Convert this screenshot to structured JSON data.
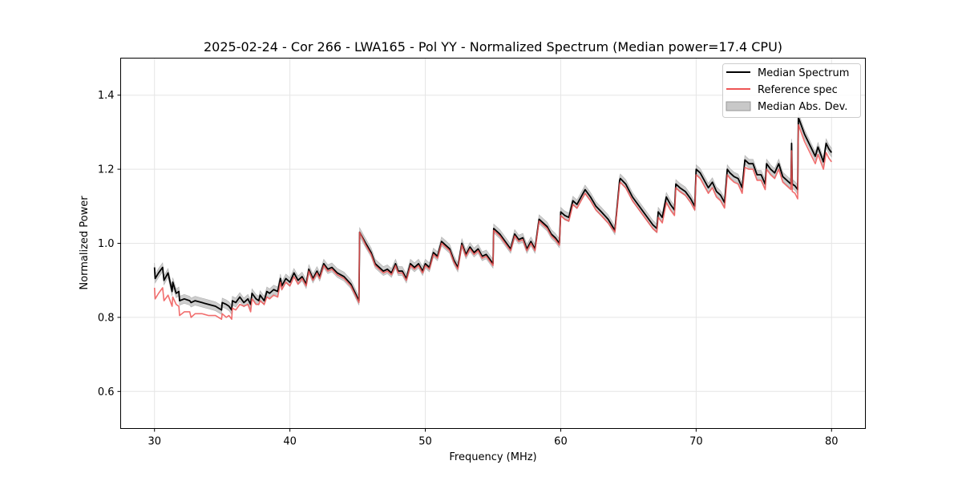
{
  "chart_data": {
    "type": "line",
    "title": "2025-02-24 - Cor 266 - LWA165 - Pol YY - Normalized Spectrum (Median power=17.4 CPU)",
    "xlabel": "Frequency (MHz)",
    "ylabel": "Normalized Power",
    "xlim": [
      27.5,
      82.5
    ],
    "ylim": [
      0.5,
      1.5
    ],
    "xticks": [
      30,
      40,
      50,
      60,
      70,
      80
    ],
    "yticks": [
      0.6,
      0.8,
      1.0,
      1.2,
      1.4
    ],
    "xtick_labels": [
      "30",
      "40",
      "50",
      "60",
      "70",
      "80"
    ],
    "ytick_labels": [
      "0.6",
      "0.8",
      "1.0",
      "1.2",
      "1.4"
    ],
    "grid": true,
    "legend_position": "top-right",
    "legend": {
      "median": "Median Spectrum",
      "reference": "Reference spec",
      "mad": "Median Abs. Dev."
    },
    "colors": {
      "median": "#000000",
      "reference": "#ee5555",
      "mad_fill": "#c8c8c8",
      "overlap": "#8b0000"
    },
    "mad_halfwidth": 0.012,
    "series": [
      {
        "name": "Median Spectrum",
        "x": [
          30.0,
          30.05,
          30.3,
          30.6,
          30.7,
          31.0,
          31.3,
          31.35,
          31.6,
          31.8,
          31.85,
          32.2,
          32.6,
          32.7,
          33.0,
          33.5,
          34.0,
          34.5,
          34.95,
          35.0,
          35.3,
          35.5,
          35.7,
          35.75,
          36.0,
          36.3,
          36.6,
          36.9,
          37.1,
          37.2,
          37.5,
          37.7,
          37.8,
          38.1,
          38.3,
          38.5,
          38.8,
          39.1,
          39.3,
          39.4,
          39.7,
          40.0,
          40.3,
          40.6,
          40.9,
          41.2,
          41.4,
          41.7,
          42.0,
          42.2,
          42.5,
          42.8,
          43.1,
          43.5,
          44.0,
          44.5,
          45.1,
          45.15,
          45.6,
          46.0,
          46.3,
          46.6,
          46.9,
          47.2,
          47.5,
          47.8,
          48.0,
          48.3,
          48.6,
          48.9,
          49.2,
          49.5,
          49.8,
          50.0,
          50.3,
          50.6,
          50.9,
          51.2,
          51.5,
          51.8,
          52.1,
          52.4,
          52.7,
          53.0,
          53.3,
          53.6,
          53.9,
          54.2,
          54.5,
          54.8,
          55.0,
          55.05,
          55.5,
          56.0,
          56.3,
          56.6,
          56.9,
          57.2,
          57.5,
          57.8,
          58.1,
          58.4,
          58.7,
          59.0,
          59.3,
          59.6,
          59.9,
          60.0,
          60.3,
          60.6,
          60.9,
          61.2,
          61.5,
          61.8,
          62.2,
          62.6,
          63.0,
          63.5,
          64.0,
          64.35,
          64.4,
          64.8,
          65.3,
          65.8,
          66.3,
          66.8,
          67.1,
          67.2,
          67.5,
          67.8,
          68.1,
          68.4,
          68.5,
          68.8,
          69.2,
          69.6,
          69.9,
          70.0,
          70.3,
          70.6,
          70.9,
          71.2,
          71.5,
          71.8,
          72.1,
          72.3,
          72.5,
          72.8,
          73.1,
          73.4,
          73.6,
          73.9,
          74.2,
          74.5,
          74.8,
          75.1,
          75.2,
          75.5,
          75.8,
          76.1,
          76.4,
          76.7,
          77.0,
          77.05,
          77.1,
          77.3,
          77.5,
          77.55,
          78.0,
          78.4,
          78.8,
          79.0,
          79.2,
          79.4,
          79.6,
          79.8,
          80.0
        ],
        "values": [
          0.935,
          0.905,
          0.92,
          0.935,
          0.9,
          0.92,
          0.87,
          0.895,
          0.865,
          0.87,
          0.845,
          0.85,
          0.845,
          0.84,
          0.845,
          0.84,
          0.835,
          0.83,
          0.82,
          0.84,
          0.835,
          0.83,
          0.82,
          0.845,
          0.84,
          0.855,
          0.84,
          0.85,
          0.835,
          0.865,
          0.85,
          0.845,
          0.86,
          0.845,
          0.87,
          0.865,
          0.875,
          0.87,
          0.905,
          0.885,
          0.905,
          0.895,
          0.92,
          0.9,
          0.91,
          0.89,
          0.93,
          0.905,
          0.925,
          0.91,
          0.945,
          0.93,
          0.935,
          0.92,
          0.91,
          0.89,
          0.845,
          1.03,
          1.0,
          0.975,
          0.945,
          0.935,
          0.925,
          0.93,
          0.92,
          0.945,
          0.925,
          0.925,
          0.905,
          0.945,
          0.935,
          0.945,
          0.925,
          0.945,
          0.935,
          0.975,
          0.965,
          1.005,
          0.995,
          0.985,
          0.955,
          0.935,
          1.0,
          0.97,
          0.99,
          0.975,
          0.985,
          0.965,
          0.97,
          0.955,
          0.945,
          1.04,
          1.025,
          1.0,
          0.985,
          1.025,
          1.01,
          1.015,
          0.985,
          1.005,
          0.985,
          1.065,
          1.055,
          1.045,
          1.025,
          1.015,
          1.0,
          1.085,
          1.075,
          1.07,
          1.115,
          1.105,
          1.125,
          1.145,
          1.125,
          1.1,
          1.085,
          1.065,
          1.035,
          1.17,
          1.175,
          1.16,
          1.125,
          1.1,
          1.075,
          1.05,
          1.04,
          1.085,
          1.07,
          1.125,
          1.105,
          1.09,
          1.16,
          1.15,
          1.14,
          1.12,
          1.1,
          1.2,
          1.19,
          1.17,
          1.15,
          1.165,
          1.14,
          1.13,
          1.11,
          1.2,
          1.19,
          1.18,
          1.175,
          1.15,
          1.225,
          1.215,
          1.215,
          1.185,
          1.185,
          1.16,
          1.215,
          1.2,
          1.19,
          1.215,
          1.18,
          1.17,
          1.16,
          1.27,
          1.16,
          1.155,
          1.145,
          1.34,
          1.295,
          1.265,
          1.235,
          1.26,
          1.24,
          1.22,
          1.27,
          1.255,
          1.245
        ]
      },
      {
        "name": "Reference spec",
        "x": [
          30.0,
          30.05,
          30.3,
          30.6,
          30.7,
          31.0,
          31.3,
          31.35,
          31.6,
          31.8,
          31.85,
          32.2,
          32.6,
          32.7,
          33.0,
          33.5,
          34.0,
          34.5,
          34.95,
          35.0,
          35.3,
          35.5,
          35.7,
          35.75,
          36.0,
          36.3,
          36.6,
          36.9,
          37.1,
          37.2,
          37.5,
          37.7,
          37.8,
          38.1,
          38.3,
          38.5,
          38.8,
          39.1,
          39.3,
          39.4,
          39.7,
          40.0,
          40.3,
          40.6,
          40.9,
          41.2,
          41.4,
          41.7,
          42.0,
          42.2,
          42.5,
          42.8,
          43.1,
          43.5,
          44.0,
          44.5,
          45.1,
          45.15,
          45.6,
          46.0,
          46.3,
          46.6,
          46.9,
          47.2,
          47.5,
          47.8,
          48.0,
          48.3,
          48.6,
          48.9,
          49.2,
          49.5,
          49.8,
          50.0,
          50.3,
          50.6,
          50.9,
          51.2,
          51.5,
          51.8,
          52.1,
          52.4,
          52.7,
          53.0,
          53.3,
          53.6,
          53.9,
          54.2,
          54.5,
          54.8,
          55.0,
          55.05,
          55.5,
          56.0,
          56.3,
          56.6,
          56.9,
          57.2,
          57.5,
          57.8,
          58.1,
          58.4,
          58.7,
          59.0,
          59.3,
          59.6,
          59.9,
          60.0,
          60.3,
          60.6,
          60.9,
          61.2,
          61.5,
          61.8,
          62.2,
          62.6,
          63.0,
          63.5,
          64.0,
          64.35,
          64.4,
          64.8,
          65.3,
          65.8,
          66.3,
          66.8,
          67.1,
          67.2,
          67.5,
          67.8,
          68.1,
          68.4,
          68.5,
          68.8,
          69.2,
          69.6,
          69.9,
          70.0,
          70.3,
          70.6,
          70.9,
          71.2,
          71.5,
          71.8,
          72.1,
          72.3,
          72.5,
          72.8,
          73.1,
          73.4,
          73.6,
          73.9,
          74.2,
          74.5,
          74.8,
          75.1,
          75.2,
          75.5,
          75.8,
          76.1,
          76.4,
          76.7,
          77.0,
          77.05,
          77.1,
          77.3,
          77.5,
          77.55,
          78.0,
          78.4,
          78.8,
          79.0,
          79.2,
          79.4,
          79.6,
          79.8,
          80.0
        ],
        "values": [
          0.88,
          0.85,
          0.865,
          0.88,
          0.845,
          0.86,
          0.83,
          0.855,
          0.835,
          0.83,
          0.805,
          0.815,
          0.815,
          0.8,
          0.81,
          0.81,
          0.805,
          0.805,
          0.795,
          0.81,
          0.8,
          0.805,
          0.795,
          0.825,
          0.82,
          0.835,
          0.83,
          0.835,
          0.815,
          0.85,
          0.835,
          0.835,
          0.845,
          0.835,
          0.855,
          0.85,
          0.86,
          0.855,
          0.895,
          0.875,
          0.895,
          0.885,
          0.91,
          0.89,
          0.905,
          0.885,
          0.925,
          0.9,
          0.92,
          0.905,
          0.94,
          0.925,
          0.93,
          0.915,
          0.905,
          0.885,
          0.84,
          1.03,
          0.995,
          0.97,
          0.94,
          0.93,
          0.92,
          0.925,
          0.915,
          0.94,
          0.92,
          0.92,
          0.9,
          0.94,
          0.93,
          0.94,
          0.92,
          0.94,
          0.93,
          0.97,
          0.96,
          1.0,
          0.99,
          0.98,
          0.95,
          0.93,
          0.995,
          0.965,
          0.985,
          0.97,
          0.98,
          0.96,
          0.965,
          0.95,
          0.94,
          1.035,
          1.02,
          0.995,
          0.98,
          1.02,
          1.005,
          1.01,
          0.98,
          1.0,
          0.98,
          1.06,
          1.05,
          1.04,
          1.02,
          1.01,
          0.995,
          1.075,
          1.065,
          1.06,
          1.105,
          1.095,
          1.115,
          1.135,
          1.115,
          1.09,
          1.075,
          1.055,
          1.03,
          1.16,
          1.165,
          1.15,
          1.115,
          1.09,
          1.065,
          1.04,
          1.03,
          1.07,
          1.055,
          1.11,
          1.09,
          1.075,
          1.15,
          1.14,
          1.13,
          1.11,
          1.09,
          1.185,
          1.175,
          1.155,
          1.135,
          1.15,
          1.125,
          1.115,
          1.095,
          1.185,
          1.175,
          1.165,
          1.16,
          1.135,
          1.205,
          1.2,
          1.2,
          1.17,
          1.17,
          1.145,
          1.2,
          1.185,
          1.175,
          1.2,
          1.165,
          1.155,
          1.145,
          1.25,
          1.14,
          1.135,
          1.12,
          1.32,
          1.275,
          1.245,
          1.215,
          1.24,
          1.22,
          1.2,
          1.245,
          1.23,
          1.22
        ]
      }
    ]
  }
}
